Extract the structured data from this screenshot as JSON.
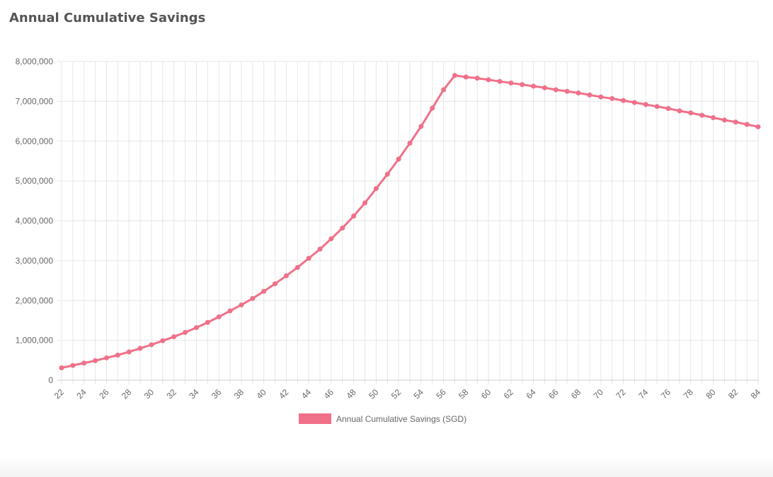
{
  "page": {
    "title": "Annual Cumulative Savings"
  },
  "chart_data": {
    "type": "line",
    "title": "Annual Cumulative Savings",
    "xlabel": "",
    "ylabel": "",
    "x": [
      22,
      23,
      24,
      25,
      26,
      27,
      28,
      29,
      30,
      31,
      32,
      33,
      34,
      35,
      36,
      37,
      38,
      39,
      40,
      41,
      42,
      43,
      44,
      45,
      46,
      47,
      48,
      49,
      50,
      51,
      52,
      53,
      54,
      55,
      56,
      57,
      58,
      59,
      60,
      61,
      62,
      63,
      64,
      65,
      66,
      67,
      68,
      69,
      70,
      71,
      72,
      73,
      74,
      75,
      76,
      77,
      78,
      79,
      80,
      81,
      82,
      83,
      84
    ],
    "x_tick_labels": [
      "22",
      "24",
      "26",
      "28",
      "30",
      "32",
      "34",
      "36",
      "38",
      "40",
      "42",
      "44",
      "46",
      "48",
      "50",
      "52",
      "54",
      "56",
      "58",
      "60",
      "62",
      "64",
      "66",
      "68",
      "70",
      "72",
      "74",
      "76",
      "78",
      "80",
      "82",
      "84"
    ],
    "y_tick_labels": [
      "0",
      "1,000,000",
      "2,000,000",
      "3,000,000",
      "4,000,000",
      "5,000,000",
      "6,000,000",
      "7,000,000",
      "8,000,000"
    ],
    "y_ticks": [
      0,
      1000000,
      2000000,
      3000000,
      4000000,
      5000000,
      6000000,
      7000000,
      8000000
    ],
    "xlim": [
      22,
      84
    ],
    "ylim": [
      0,
      8000000
    ],
    "grid": true,
    "legend_position": "bottom",
    "series": [
      {
        "name": "Annual Cumulative Savings (SGD)",
        "color": "#f07089",
        "values": [
          310000,
          370000,
          430000,
          490000,
          560000,
          630000,
          710000,
          800000,
          890000,
          990000,
          1090000,
          1200000,
          1320000,
          1450000,
          1590000,
          1740000,
          1890000,
          2050000,
          2230000,
          2420000,
          2620000,
          2830000,
          3060000,
          3290000,
          3550000,
          3820000,
          4120000,
          4450000,
          4810000,
          5170000,
          5550000,
          5950000,
          6370000,
          6830000,
          7290000,
          7650000,
          7610000,
          7580000,
          7540000,
          7500000,
          7460000,
          7420000,
          7380000,
          7340000,
          7290000,
          7250000,
          7210000,
          7160000,
          7110000,
          7070000,
          7020000,
          6970000,
          6920000,
          6870000,
          6820000,
          6760000,
          6710000,
          6650000,
          6590000,
          6530000,
          6480000,
          6420000,
          6360000
        ]
      }
    ]
  }
}
